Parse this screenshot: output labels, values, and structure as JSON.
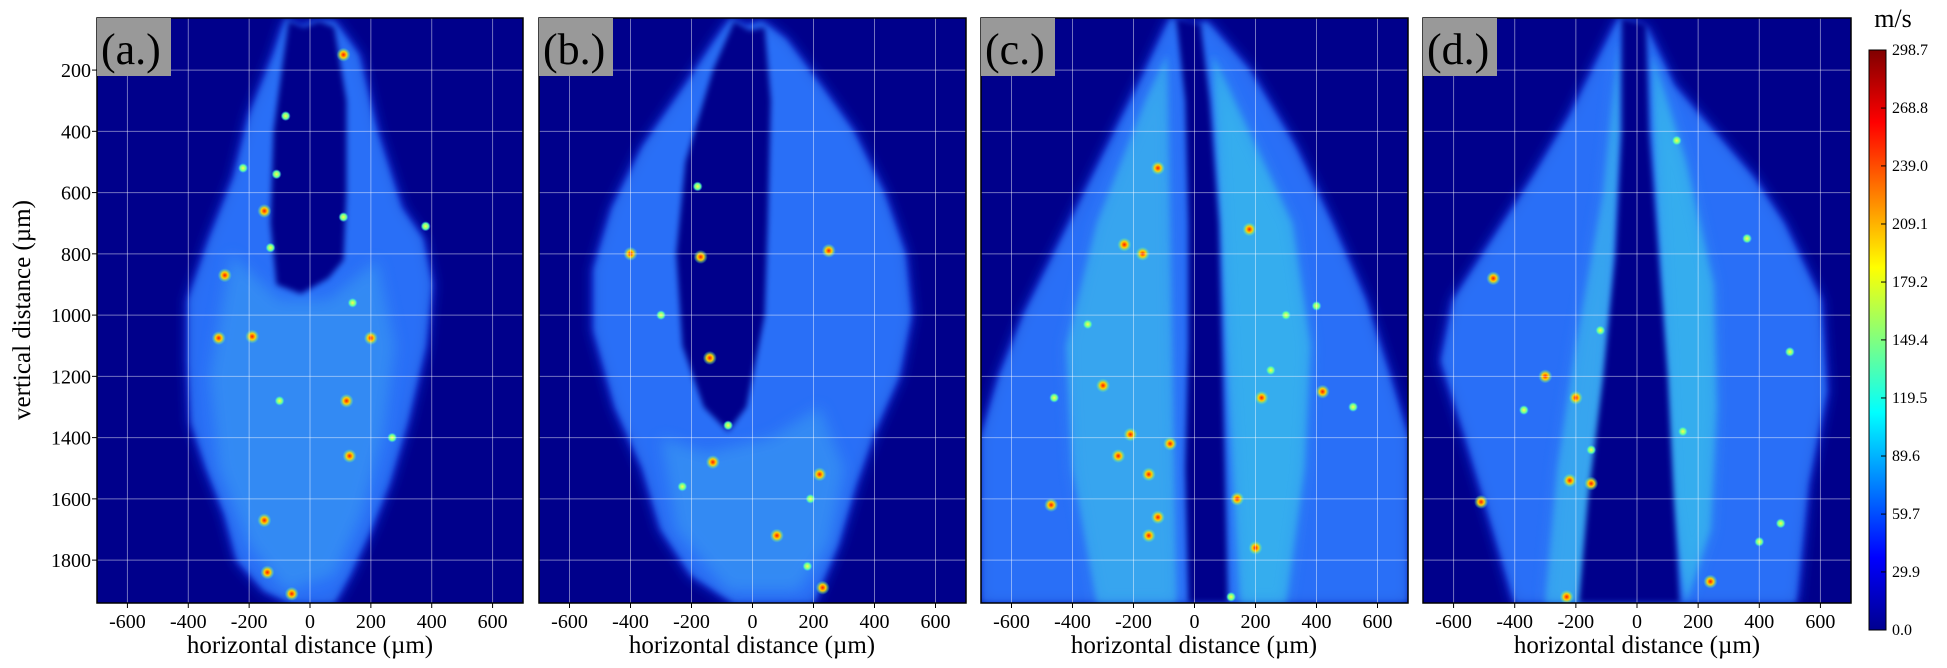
{
  "chart_data": {
    "type": "heatmap",
    "description_kind": "velocity magnitude fields",
    "panels": [
      {
        "label": "(a.)",
        "xlabel": "horizontal distance (µm)",
        "ylabel": "vertical distance (µm)"
      },
      {
        "label": "(b.)",
        "xlabel": "horizontal distance (µm)",
        "ylabel": ""
      },
      {
        "label": "(c.)",
        "xlabel": "horizontal distance (µm)",
        "ylabel": ""
      },
      {
        "label": "(d.)",
        "xlabel": "horizontal distance (µm)",
        "ylabel": ""
      }
    ],
    "x_ticks": [
      -600,
      -400,
      -200,
      0,
      200,
      400,
      600
    ],
    "x_tick_labels": [
      "-600",
      "-400",
      "-200",
      "0",
      "200",
      "400",
      "600"
    ],
    "y_ticks": [
      200,
      400,
      600,
      800,
      1000,
      1200,
      1400,
      1600,
      1800
    ],
    "y_tick_labels": [
      "200",
      "400",
      "600",
      "800",
      "1000",
      "1200",
      "1400",
      "1600",
      "1800"
    ],
    "xlim": [
      -700,
      700
    ],
    "ylim": [
      1940,
      30
    ],
    "grid": true,
    "colorbar": {
      "unit": "m/s",
      "ticks": [
        0.0,
        29.9,
        59.7,
        89.6,
        119.5,
        149.4,
        179.2,
        209.1,
        239.0,
        268.8,
        298.7
      ],
      "tick_labels": [
        "0.0",
        "29.9",
        "59.7",
        "89.6",
        "119.5",
        "149.4",
        "179.2",
        "209.1",
        "239.0",
        "268.8",
        "298.7"
      ],
      "range": [
        0.0,
        298.7
      ],
      "colormap": [
        "#00008f",
        "#0000ff",
        "#0080ff",
        "#00ffff",
        "#80ff80",
        "#ffff00",
        "#ff8000",
        "#ff0000",
        "#800000"
      ]
    },
    "background_color": "#00008b"
  }
}
